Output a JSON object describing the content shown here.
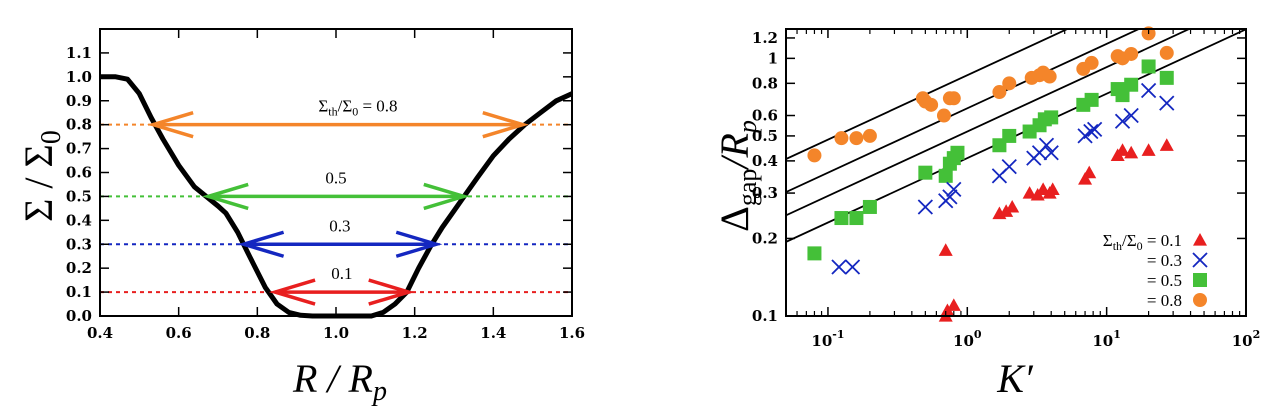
{
  "chart_data": [
    {
      "type": "line",
      "title": "",
      "xlabel": "R / R_p",
      "ylabel": "Σ / Σ_0",
      "xlim": [
        0.4,
        1.6
      ],
      "ylim": [
        0.0,
        1.2
      ],
      "xticks": [
        "0.4",
        "0.6",
        "0.8",
        "1.0",
        "1.2",
        "1.4",
        "1.6"
      ],
      "yticks": [
        "0.0",
        "0.1",
        "0.2",
        "0.3",
        "0.4",
        "0.5",
        "0.6",
        "0.7",
        "0.8",
        "0.9",
        "1.0",
        "1.1"
      ],
      "profile": {
        "name": "surface density",
        "color": "#000000",
        "x": [
          0.4,
          0.44,
          0.47,
          0.5,
          0.53,
          0.56,
          0.6,
          0.64,
          0.67,
          0.7,
          0.72,
          0.75,
          0.78,
          0.82,
          0.85,
          0.88,
          0.91,
          0.94,
          0.97,
          1.0,
          1.03,
          1.06,
          1.09,
          1.12,
          1.15,
          1.18,
          1.21,
          1.24,
          1.27,
          1.3,
          1.33,
          1.36,
          1.4,
          1.44,
          1.48,
          1.52,
          1.56,
          1.6
        ],
        "y": [
          1.0,
          1.0,
          0.99,
          0.93,
          0.83,
          0.74,
          0.63,
          0.54,
          0.5,
          0.46,
          0.43,
          0.35,
          0.25,
          0.12,
          0.05,
          0.015,
          0.003,
          0.0,
          0.0,
          0.0,
          0.0,
          0.0,
          0.0,
          0.015,
          0.05,
          0.1,
          0.2,
          0.29,
          0.37,
          0.44,
          0.51,
          0.58,
          0.67,
          0.74,
          0.8,
          0.85,
          0.9,
          0.93
        ]
      },
      "thresholds": [
        {
          "value": 0.8,
          "label": "Σth/Σ0 = 0.8",
          "label_main": "Σ",
          "label_sub1": "th",
          "label_mid": "/Σ",
          "label_sub2": "0",
          "label_tail": " = 0.8",
          "color": "#f4852a",
          "x_left": 0.53,
          "x_right": 1.48
        },
        {
          "value": 0.5,
          "label": "0.5",
          "color": "#44c038",
          "x_left": 0.67,
          "x_right": 1.33
        },
        {
          "value": 0.3,
          "label": "0.3",
          "color": "#1427c0",
          "x_left": 0.76,
          "x_right": 1.26
        },
        {
          "value": 0.1,
          "label": "0.1",
          "color": "#e81f1f",
          "x_left": 0.84,
          "x_right": 1.19
        }
      ]
    },
    {
      "type": "scatter",
      "title": "",
      "xlabel": "K′",
      "ylabel": "Δgap/R_p",
      "ylabel_main": "Δ",
      "ylabel_sub": "gap",
      "ylabel_tail": "/R",
      "ylabel_sub2": "p",
      "xscale": "log",
      "yscale": "log",
      "xlim": [
        0.05,
        100
      ],
      "ylim": [
        0.1,
        1.3
      ],
      "xticks": [
        {
          "value": 0.1,
          "label": "10",
          "exp": "-1"
        },
        {
          "value": 1,
          "label": "10",
          "exp": "0"
        },
        {
          "value": 10,
          "label": "10",
          "exp": "1"
        },
        {
          "value": 100,
          "label": "10",
          "exp": "2"
        }
      ],
      "yticks": [
        "0.1",
        "0.2",
        "0.3",
        "0.4",
        "0.5",
        "0.6",
        "0.8",
        "1",
        "1.2"
      ],
      "fit_lines": [
        {
          "coef": 0.41,
          "exponent": 0.25
        },
        {
          "coef": 0.52,
          "exponent": 0.25
        },
        {
          "coef": 0.64,
          "exponent": 0.25
        },
        {
          "coef": 0.86,
          "exponent": 0.25
        }
      ],
      "series": [
        {
          "name": "Σth/Σ0 = 0.1",
          "marker": "triangle",
          "color": "#e81f1f",
          "x": [
            0.7,
            0.72,
            0.8,
            1.7,
            1.9,
            2.1,
            2.8,
            3.2,
            3.5,
            3.9,
            4.1,
            7.0,
            7.5,
            12.0,
            13.0,
            15.0,
            20.0,
            27.0,
            0.7
          ],
          "y": [
            0.1,
            0.105,
            0.11,
            0.25,
            0.255,
            0.265,
            0.3,
            0.295,
            0.31,
            0.3,
            0.31,
            0.34,
            0.36,
            0.42,
            0.44,
            0.43,
            0.44,
            0.46,
            0.18
          ]
        },
        {
          "name": "= 0.3",
          "marker": "cross",
          "color": "#1427c0",
          "x": [
            0.12,
            0.15,
            0.5,
            0.7,
            0.75,
            0.8,
            1.7,
            2.0,
            3.0,
            3.3,
            3.7,
            4.0,
            7.0,
            7.7,
            8.2,
            13.0,
            15.0,
            20.0,
            27.0
          ],
          "y": [
            0.155,
            0.155,
            0.265,
            0.28,
            0.29,
            0.31,
            0.35,
            0.38,
            0.41,
            0.43,
            0.46,
            0.43,
            0.5,
            0.52,
            0.53,
            0.57,
            0.6,
            0.75,
            0.67
          ]
        },
        {
          "name": "= 0.5",
          "marker": "square",
          "color": "#44c038",
          "x": [
            0.08,
            0.125,
            0.16,
            0.2,
            0.5,
            0.7,
            0.75,
            0.8,
            0.85,
            1.7,
            2.0,
            2.8,
            3.3,
            3.6,
            4.0,
            6.8,
            7.8,
            12.0,
            13.0,
            15.0,
            20.0,
            27.0
          ],
          "y": [
            0.175,
            0.24,
            0.24,
            0.265,
            0.36,
            0.35,
            0.39,
            0.41,
            0.43,
            0.46,
            0.5,
            0.52,
            0.55,
            0.58,
            0.59,
            0.66,
            0.69,
            0.76,
            0.72,
            0.79,
            0.93,
            0.84
          ]
        },
        {
          "name": "= 0.8",
          "marker": "circle",
          "color": "#f4852a",
          "x": [
            0.08,
            0.125,
            0.16,
            0.2,
            0.48,
            0.5,
            0.55,
            0.68,
            0.75,
            0.8,
            1.7,
            2.0,
            2.9,
            3.3,
            3.5,
            3.9,
            6.8,
            7.8,
            12.0,
            13.0,
            15.0,
            20.0,
            27.0
          ],
          "y": [
            0.42,
            0.49,
            0.49,
            0.5,
            0.7,
            0.68,
            0.66,
            0.6,
            0.7,
            0.7,
            0.74,
            0.8,
            0.84,
            0.86,
            0.88,
            0.85,
            0.91,
            0.96,
            1.02,
            1.0,
            1.04,
            1.25,
            1.05
          ]
        }
      ],
      "legend": {
        "position": "bottom-right",
        "entries": [
          {
            "main": "Σ",
            "sub1": "th",
            "mid": "/Σ",
            "sub2": "0",
            "tail": " = 0.1"
          },
          {
            "text": "= 0.3"
          },
          {
            "text": "= 0.5"
          },
          {
            "text": "= 0.8"
          }
        ]
      }
    }
  ]
}
